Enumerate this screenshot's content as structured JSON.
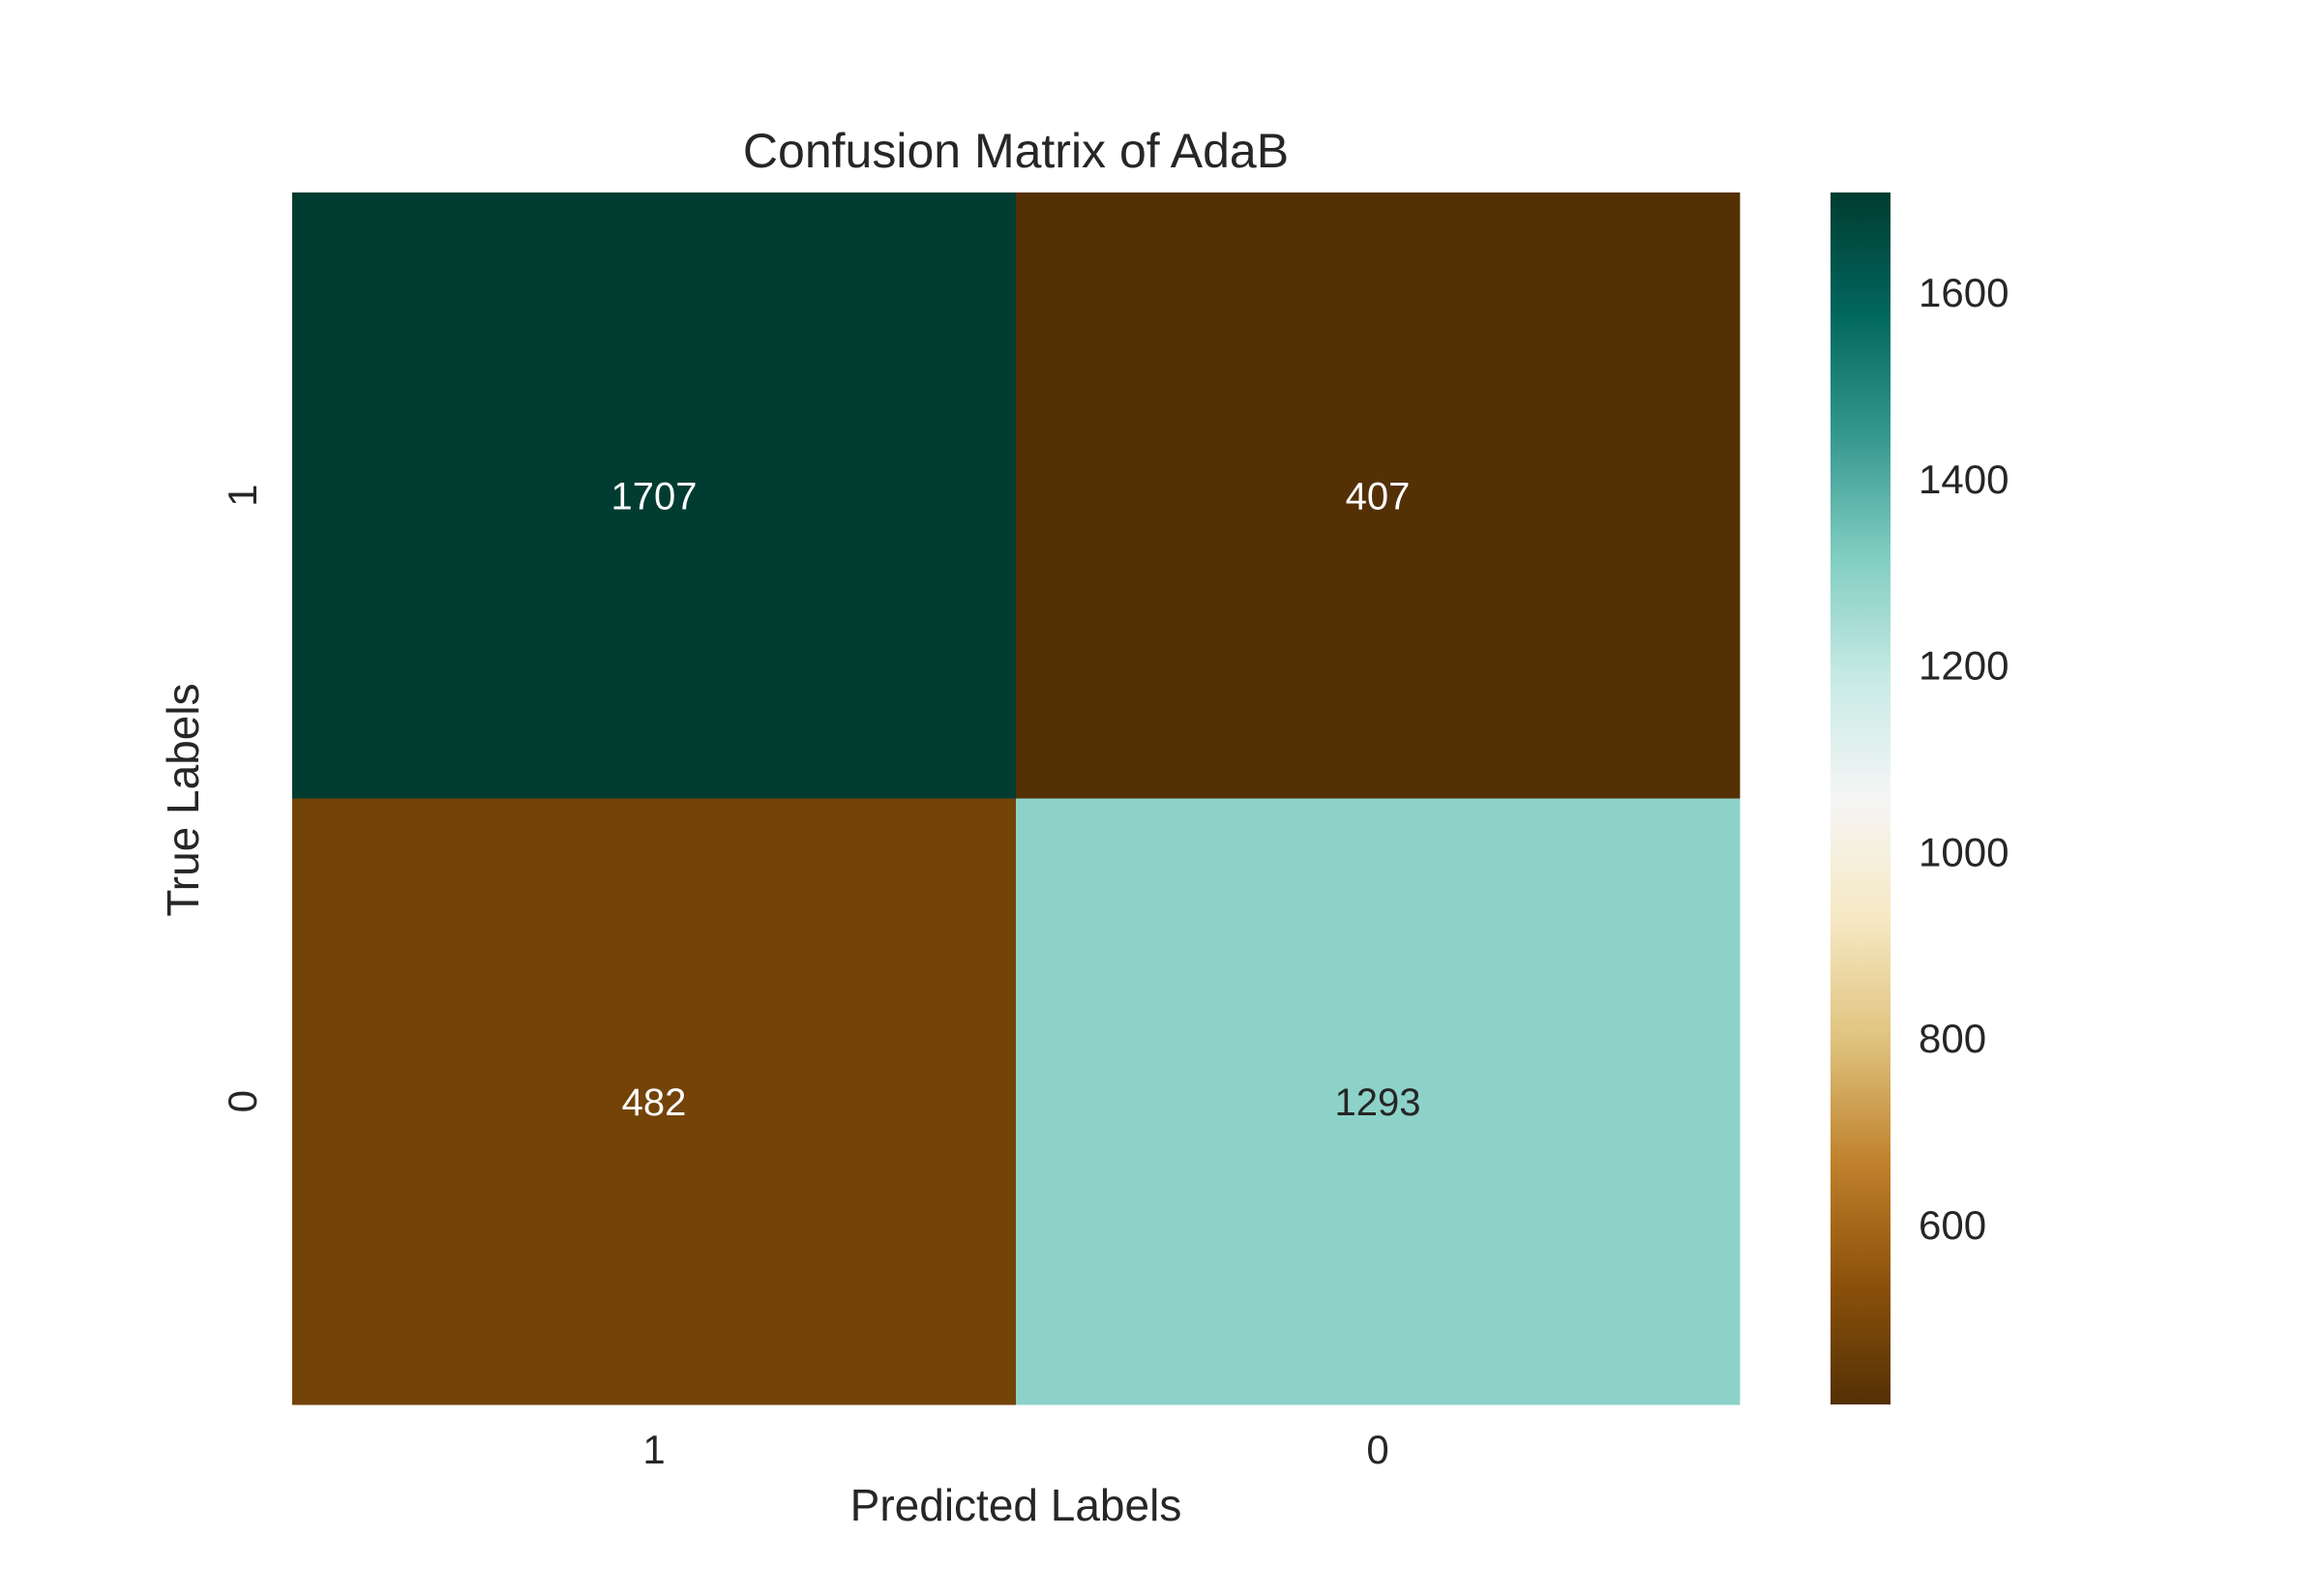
{
  "chart_data": {
    "type": "heatmap",
    "title": "Confusion Matrix of AdaB",
    "xlabel": "Predicted Labels",
    "ylabel": "True Labels",
    "x_categories": [
      "1",
      "0"
    ],
    "y_categories": [
      "1",
      "0"
    ],
    "values": [
      [
        1707,
        407
      ],
      [
        482,
        1293
      ]
    ],
    "colormap": "BrBG",
    "colorbar": {
      "range": [
        407,
        1707
      ],
      "ticks": [
        600,
        800,
        1000,
        1200,
        1400,
        1600
      ],
      "tick_labels": [
        "600",
        "800",
        "1000",
        "1200",
        "1400",
        "1600"
      ]
    },
    "grid": false,
    "legend": "none"
  },
  "colors": {
    "text": "#262626",
    "cell_text_dark_bg": "#ffffff",
    "cell_text_light_bg": "#262626"
  }
}
